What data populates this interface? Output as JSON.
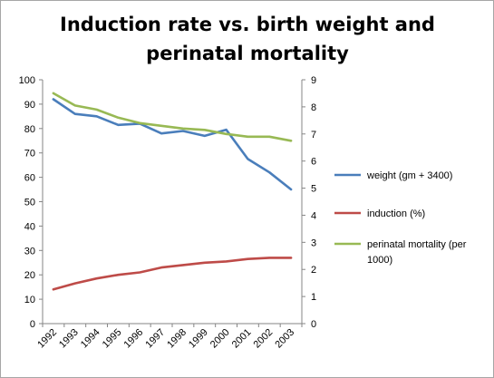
{
  "chart_data": {
    "type": "line",
    "title_lines": [
      "Induction rate vs. birth weight and",
      "perinatal mortality"
    ],
    "categories": [
      "1992",
      "1993",
      "1994",
      "1995",
      "1996",
      "1997",
      "1998",
      "1999",
      "2000",
      "2001",
      "2002",
      "2003"
    ],
    "y_left": {
      "min": 0,
      "max": 100,
      "step": 10,
      "ticks": [
        "0",
        "10",
        "20",
        "30",
        "40",
        "50",
        "60",
        "70",
        "80",
        "90",
        "100"
      ]
    },
    "y_right": {
      "min": 0,
      "max": 9,
      "step": 1,
      "ticks": [
        "0",
        "1",
        "2",
        "3",
        "4",
        "5",
        "6",
        "7",
        "8",
        "9"
      ]
    },
    "grid": false,
    "legend_position": "right",
    "series": [
      {
        "name": "weight (gm + 3400)",
        "axis": "left",
        "color": "#4a7ebb",
        "values": [
          92,
          86,
          85,
          81.5,
          82,
          78,
          79,
          77,
          79.5,
          67.5,
          62,
          55
        ]
      },
      {
        "name": "induction (%)",
        "axis": "left",
        "color": "#be4b48",
        "values": [
          14,
          16.5,
          18.5,
          20,
          21,
          23,
          24,
          25,
          25.5,
          26.5,
          27,
          27
        ]
      },
      {
        "name": "perinatal mortality (per 1000)",
        "axis": "right",
        "color": "#98b954",
        "values": [
          8.5,
          8.05,
          7.9,
          7.6,
          7.4,
          7.3,
          7.2,
          7.15,
          7.0,
          6.9,
          6.9,
          6.75
        ]
      }
    ]
  }
}
